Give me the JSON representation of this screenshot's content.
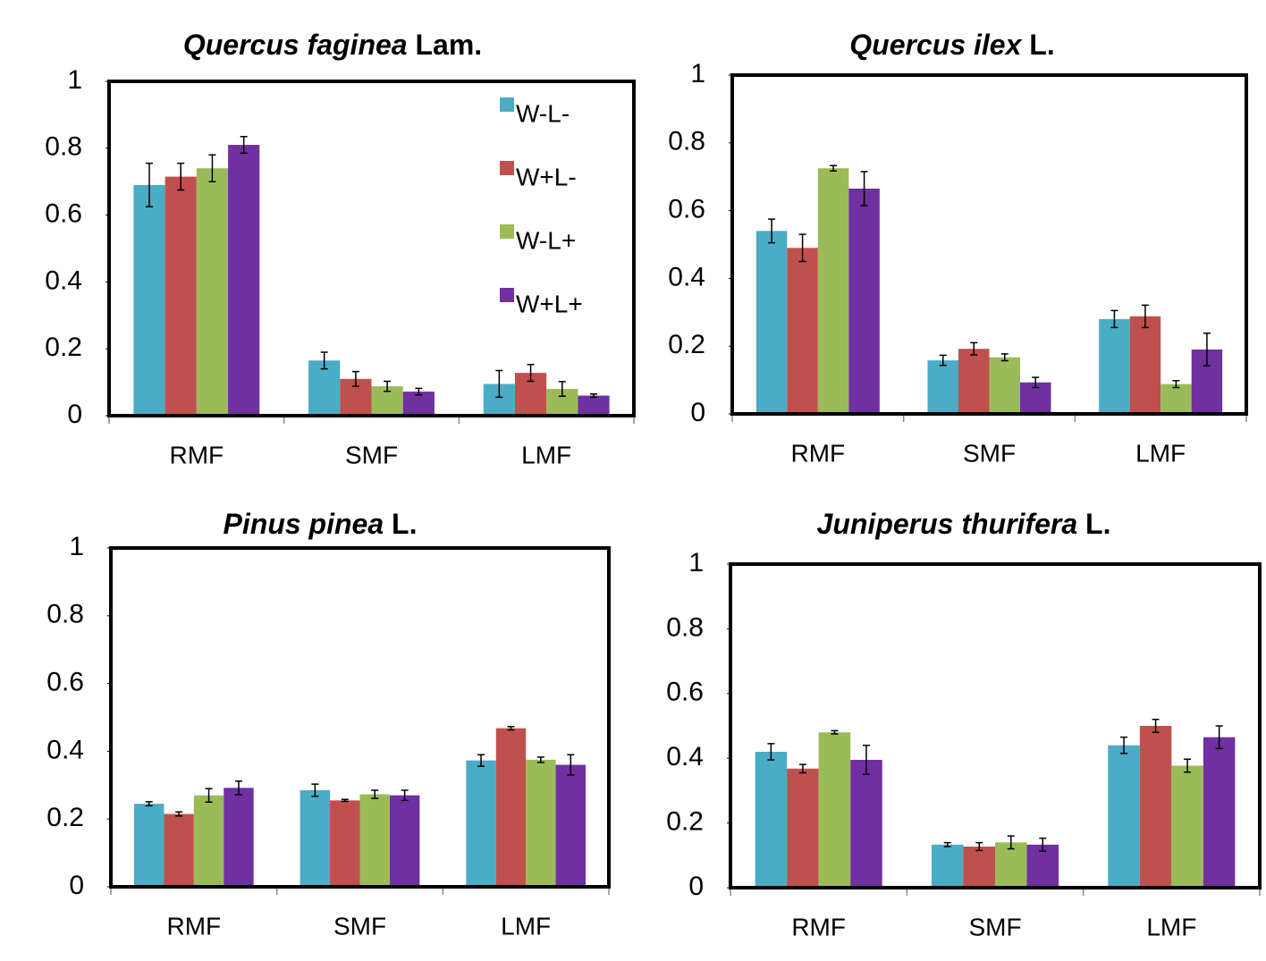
{
  "chart_data": [
    {
      "type": "bar",
      "title_species": "Quercus faginea",
      "title_author": "Lam.",
      "categories": [
        "RMF",
        "SMF",
        "LMF"
      ],
      "series": [
        {
          "name": "W-L-",
          "color": "#4bacc6",
          "values": [
            0.69,
            0.165,
            0.095
          ],
          "errors": [
            0.065,
            0.025,
            0.04
          ]
        },
        {
          "name": "W+L-",
          "color": "#c0504d",
          "values": [
            0.715,
            0.11,
            0.128
          ],
          "errors": [
            0.04,
            0.022,
            0.025
          ]
        },
        {
          "name": "W-L+",
          "color": "#9bbb59",
          "values": [
            0.74,
            0.088,
            0.08
          ],
          "errors": [
            0.04,
            0.015,
            0.022
          ]
        },
        {
          "name": "W+L+",
          "color": "#7030a0",
          "values": [
            0.81,
            0.072,
            0.06
          ],
          "errors": [
            0.025,
            0.01,
            0.005
          ]
        }
      ],
      "ylim": [
        0,
        1
      ],
      "yticks": [
        0,
        0.2,
        0.4,
        0.6,
        0.8,
        1
      ],
      "legend": "upper right"
    },
    {
      "type": "bar",
      "title_species": "Quercus ilex",
      "title_author": "L.",
      "categories": [
        "RMF",
        "SMF",
        "LMF"
      ],
      "series": [
        {
          "name": "W-L-",
          "color": "#4bacc6",
          "values": [
            0.54,
            0.158,
            0.28
          ],
          "errors": [
            0.035,
            0.015,
            0.025
          ]
        },
        {
          "name": "W+L-",
          "color": "#c0504d",
          "values": [
            0.49,
            0.192,
            0.288
          ],
          "errors": [
            0.04,
            0.018,
            0.033
          ]
        },
        {
          "name": "W-L+",
          "color": "#9bbb59",
          "values": [
            0.725,
            0.167,
            0.088
          ],
          "errors": [
            0.008,
            0.01,
            0.01
          ]
        },
        {
          "name": "W+L+",
          "color": "#7030a0",
          "values": [
            0.665,
            0.093,
            0.19
          ],
          "errors": [
            0.05,
            0.015,
            0.048
          ]
        }
      ],
      "ylim": [
        0,
        1
      ],
      "yticks": [
        0,
        0.2,
        0.4,
        0.6,
        0.8,
        1
      ]
    },
    {
      "type": "bar",
      "title_species": "Pinus pinea",
      "title_author": "L.",
      "categories": [
        "RMF",
        "SMF",
        "LMF"
      ],
      "series": [
        {
          "name": "W-L-",
          "color": "#4bacc6",
          "values": [
            0.245,
            0.285,
            0.373
          ],
          "errors": [
            0.006,
            0.018,
            0.017
          ]
        },
        {
          "name": "W+L-",
          "color": "#c0504d",
          "values": [
            0.215,
            0.255,
            0.468
          ],
          "errors": [
            0.006,
            0.003,
            0.005
          ]
        },
        {
          "name": "W-L+",
          "color": "#9bbb59",
          "values": [
            0.27,
            0.273,
            0.375
          ],
          "errors": [
            0.02,
            0.012,
            0.008
          ]
        },
        {
          "name": "W+L+",
          "color": "#7030a0",
          "values": [
            0.292,
            0.27,
            0.36
          ],
          "errors": [
            0.02,
            0.015,
            0.03
          ]
        }
      ],
      "ylim": [
        0,
        1
      ],
      "yticks": [
        0,
        0.2,
        0.4,
        0.6,
        0.8,
        1
      ]
    },
    {
      "type": "bar",
      "title_species": "Juniperus thurifera",
      "title_author": "L.",
      "categories": [
        "RMF",
        "SMF",
        "LMF"
      ],
      "series": [
        {
          "name": "W-L-",
          "color": "#4bacc6",
          "values": [
            0.42,
            0.133,
            0.44
          ],
          "errors": [
            0.025,
            0.006,
            0.025
          ]
        },
        {
          "name": "W+L-",
          "color": "#c0504d",
          "values": [
            0.368,
            0.127,
            0.5
          ],
          "errors": [
            0.013,
            0.012,
            0.02
          ]
        },
        {
          "name": "W-L+",
          "color": "#9bbb59",
          "values": [
            0.48,
            0.14,
            0.377
          ],
          "errors": [
            0.005,
            0.02,
            0.02
          ]
        },
        {
          "name": "W+L+",
          "color": "#7030a0",
          "values": [
            0.395,
            0.133,
            0.465
          ],
          "errors": [
            0.045,
            0.02,
            0.035
          ]
        }
      ],
      "ylim": [
        0,
        1
      ],
      "yticks": [
        0,
        0.2,
        0.4,
        0.6,
        0.8,
        1
      ]
    }
  ]
}
